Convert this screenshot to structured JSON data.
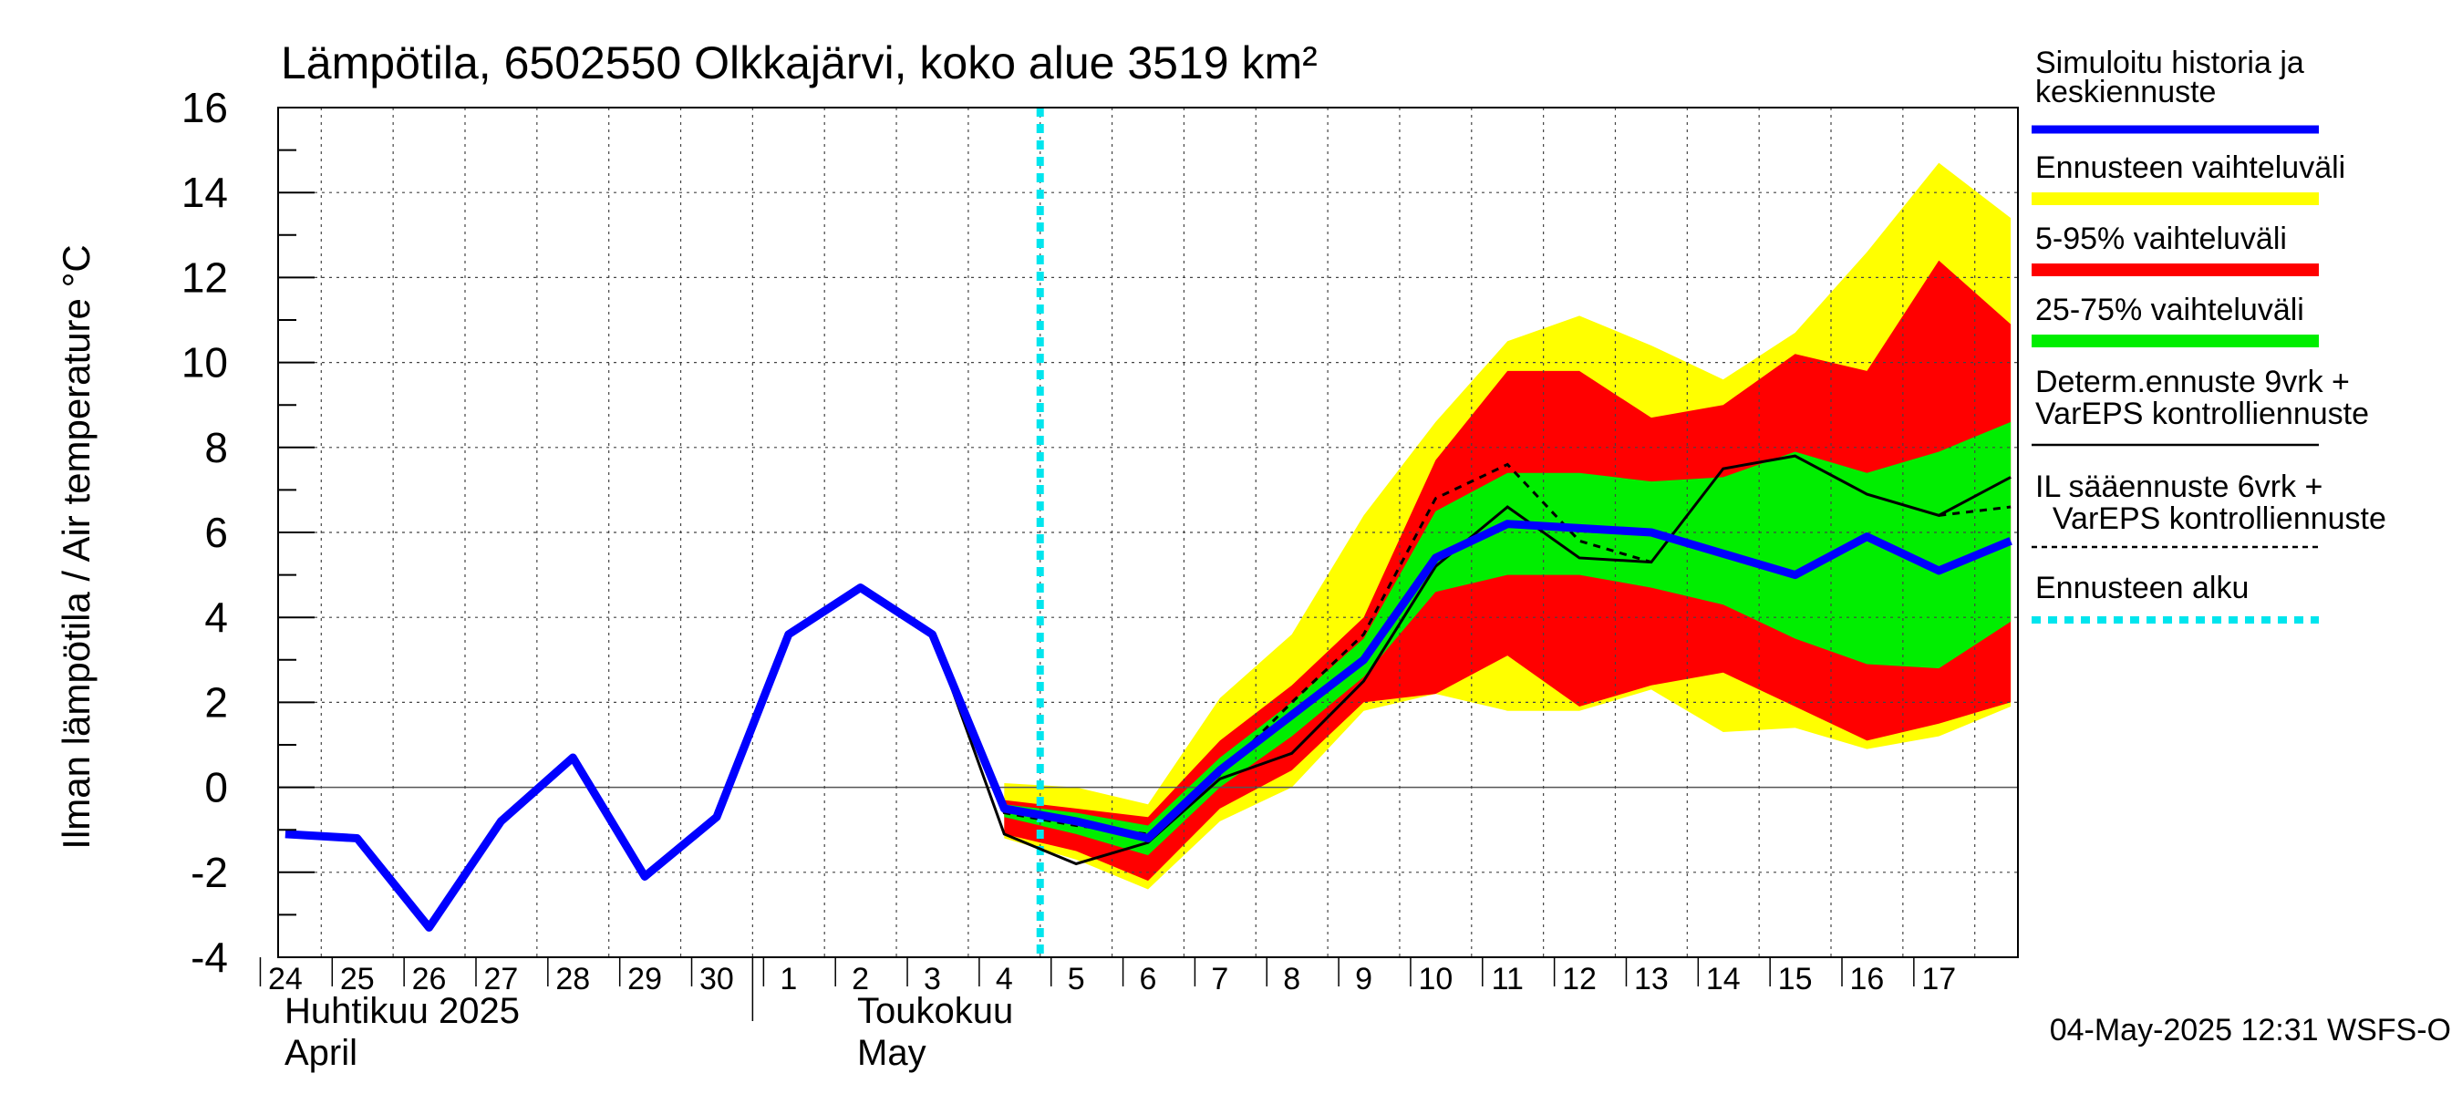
{
  "chart_data": {
    "type": "line",
    "title": "Lämpötila, 6502550 Olkkajärvi, koko alue 3519 km²",
    "ylabel": "Ilman lämpötila / Air temperature   °C",
    "ylim": [
      -4,
      16
    ],
    "yticks": [
      "-4",
      "-2",
      "0",
      "2",
      "4",
      "6",
      "8",
      "10",
      "12",
      "14",
      "16"
    ],
    "grid": true,
    "legend_position": "right",
    "x_tick_labels": [
      "24",
      "25",
      "26",
      "27",
      "28",
      "29",
      "30",
      "1",
      "2",
      "3",
      "4",
      "5",
      "6",
      "7",
      "8",
      "9",
      "10",
      "11",
      "12",
      "13",
      "14",
      "15",
      "16",
      "17"
    ],
    "month_labels": [
      {
        "line1": "Huhtikuu  2025",
        "line2": "April"
      },
      {
        "line1": "Toukokuu",
        "line2": "May"
      }
    ],
    "footer": "04-May-2025 12:31 WSFS-O",
    "forecast_start_day": 10.7,
    "legend": [
      {
        "label": "Simuloitu historia ja keskiennuste",
        "color": "#0000ff",
        "style": "thick"
      },
      {
        "label": "Ennusteen vaihteluväli",
        "color": "#ffff00",
        "style": "band"
      },
      {
        "label": "5-95% vaihteluväli",
        "color": "#ff0000",
        "style": "band"
      },
      {
        "label": "25-75% vaihteluväli",
        "color": "#00ee00",
        "style": "band"
      },
      {
        "label": "Determ.ennuste 9vrk + VarEPS kontrolliennuste",
        "color": "#000000",
        "style": "solid"
      },
      {
        "label": "IL sääennuste 6vrk  + VarEPS kontrolliennuste",
        "color": "#000000",
        "style": "dashed"
      },
      {
        "label": "Ennusteen alku",
        "color": "#00e5ee",
        "style": "dotted"
      }
    ],
    "bands": {
      "x": [
        10,
        11,
        12,
        13,
        14,
        15,
        16,
        17,
        18,
        19,
        20,
        21,
        22,
        23,
        24
      ],
      "yellow_upper": [
        0.1,
        0.0,
        -0.4,
        2.1,
        3.6,
        6.4,
        8.6,
        10.5,
        11.1,
        10.4,
        9.6,
        10.7,
        12.6,
        14.7,
        13.4
      ],
      "yellow_lower": [
        -1.2,
        -1.7,
        -2.4,
        -0.8,
        0.0,
        1.8,
        2.2,
        1.8,
        1.8,
        2.3,
        1.3,
        1.4,
        0.9,
        1.2,
        1.9
      ],
      "red_upper": [
        -0.3,
        -0.5,
        -0.7,
        1.1,
        2.4,
        4.0,
        7.7,
        9.8,
        9.8,
        8.7,
        9.0,
        10.2,
        9.8,
        12.4,
        10.9
      ],
      "red_lower": [
        -1.1,
        -1.5,
        -2.2,
        -0.5,
        0.4,
        2.0,
        2.2,
        3.1,
        1.9,
        2.4,
        2.7,
        1.9,
        1.1,
        1.5,
        2.0
      ],
      "green_upper": [
        -0.4,
        -0.6,
        -0.9,
        0.7,
        2.0,
        3.5,
        6.5,
        7.4,
        7.4,
        7.2,
        7.3,
        7.9,
        7.4,
        7.9,
        8.6
      ],
      "green_lower": [
        -0.7,
        -1.1,
        -1.6,
        0.0,
        1.2,
        2.6,
        4.6,
        5.0,
        5.0,
        4.7,
        4.3,
        3.5,
        2.9,
        2.8,
        3.9
      ]
    },
    "series": [
      {
        "name": "Simuloitu historia ja keskiennuste",
        "x": [
          0,
          1,
          2,
          3,
          4,
          5,
          6,
          7,
          8,
          9,
          10,
          11,
          12,
          13,
          14,
          15,
          16,
          17,
          18,
          19,
          20,
          21,
          22,
          23,
          24
        ],
        "y": [
          -1.1,
          -1.2,
          -3.3,
          -0.8,
          0.7,
          -2.1,
          -0.7,
          3.6,
          4.7,
          3.6,
          -0.5,
          -0.8,
          -1.2,
          0.4,
          1.7,
          3.0,
          5.4,
          6.2,
          6.1,
          6.0,
          5.5,
          5.0,
          5.9,
          5.1,
          5.8
        ]
      },
      {
        "name": "Determ.ennuste 9vrk + VarEPS kontrolliennuste",
        "x": [
          9,
          10,
          11,
          12,
          13,
          14,
          15,
          16,
          17,
          18,
          19,
          20,
          21,
          22,
          23,
          24
        ],
        "y": [
          3.6,
          -1.1,
          -1.8,
          -1.3,
          0.2,
          0.8,
          2.5,
          5.2,
          6.6,
          5.4,
          5.3,
          7.5,
          7.8,
          6.9,
          6.4,
          7.3
        ]
      },
      {
        "name": "IL sääennuste 6vrk  + VarEPS kontrolliennuste",
        "x": [
          9,
          10,
          11,
          12,
          13,
          14,
          15,
          16,
          17,
          18,
          19,
          20,
          21,
          22,
          23,
          24
        ],
        "y": [
          3.6,
          -0.6,
          -0.9,
          -1.1,
          0.3,
          2.0,
          3.6,
          6.8,
          7.6,
          5.8,
          5.3,
          null,
          null,
          null,
          6.4,
          6.6
        ]
      }
    ]
  }
}
